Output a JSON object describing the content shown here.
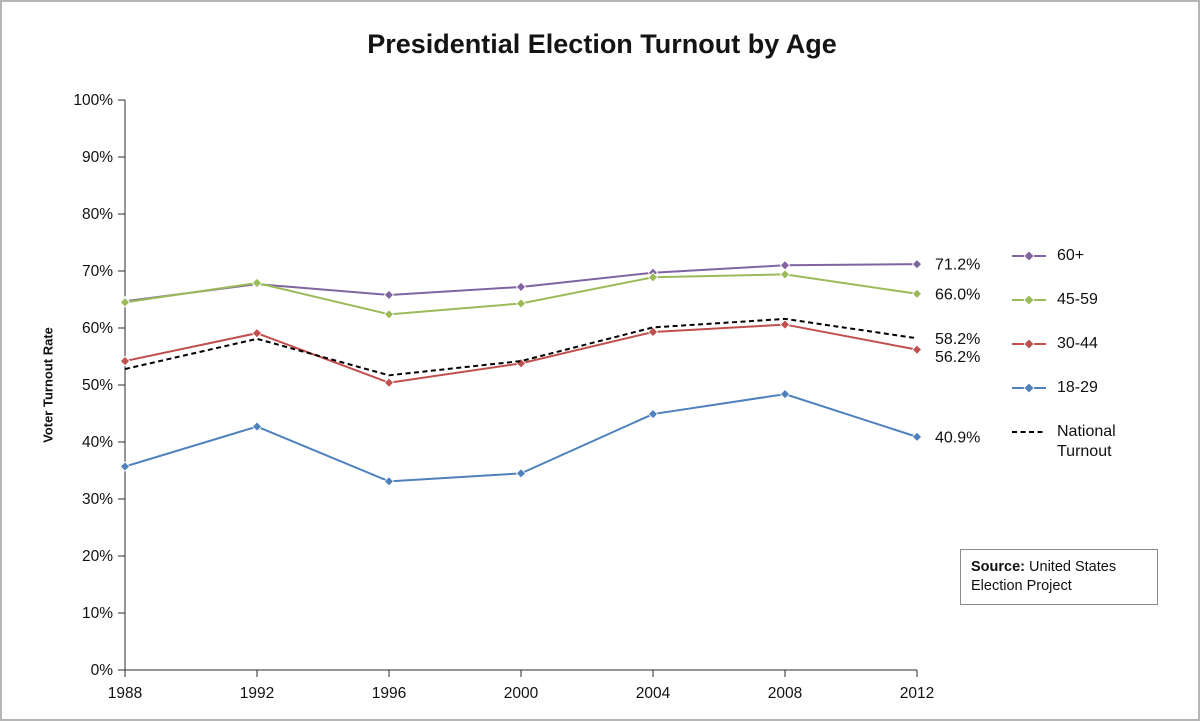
{
  "title": "Presidential Election Turnout by Age",
  "ylabel": "Voter Turnout Rate",
  "source": {
    "label": "Source:",
    "text": " United States Election Project"
  },
  "chart_data": {
    "type": "line",
    "title": "Presidential Election Turnout by Age",
    "xlabel": "",
    "ylabel": "Voter Turnout Rate",
    "x": [
      1988,
      1992,
      1996,
      2000,
      2004,
      2008,
      2012
    ],
    "xtick_labels": [
      "1988",
      "1992",
      "1996",
      "2000",
      "2004",
      "2008",
      "2012"
    ],
    "ylim": [
      0,
      100
    ],
    "ytick_labels": [
      "0%",
      "10%",
      "20%",
      "30%",
      "40%",
      "50%",
      "60%",
      "70%",
      "80%",
      "90%",
      "100%"
    ],
    "grid": false,
    "legend_position": "right",
    "series": [
      {
        "name": "60+",
        "color": "#8064A2",
        "marker": "diamond",
        "dashed": false,
        "values": [
          64.7,
          67.7,
          65.8,
          67.2,
          69.7,
          71.0,
          71.2
        ],
        "end_label": "71.2%"
      },
      {
        "name": "45-59",
        "color": "#9BBB59",
        "marker": "diamond",
        "dashed": false,
        "values": [
          64.5,
          67.9,
          62.4,
          64.3,
          68.9,
          69.4,
          66.0
        ],
        "end_label": "66.0%"
      },
      {
        "name": "30-44",
        "color": "#C0504D",
        "marker": "diamond",
        "dashed": false,
        "values": [
          54.2,
          59.1,
          50.4,
          53.8,
          59.3,
          60.6,
          56.2
        ],
        "end_label": "56.2%"
      },
      {
        "name": "18-29",
        "color": "#4F81BD",
        "marker": "diamond",
        "dashed": false,
        "values": [
          35.7,
          42.7,
          33.1,
          34.5,
          44.9,
          48.4,
          40.9
        ],
        "end_label": "40.9%"
      },
      {
        "name": "National Turnout",
        "color": "#000000",
        "marker": "none",
        "dashed": true,
        "values": [
          52.8,
          58.1,
          51.7,
          54.2,
          60.1,
          61.6,
          58.2
        ],
        "end_label": "58.2%"
      }
    ]
  }
}
